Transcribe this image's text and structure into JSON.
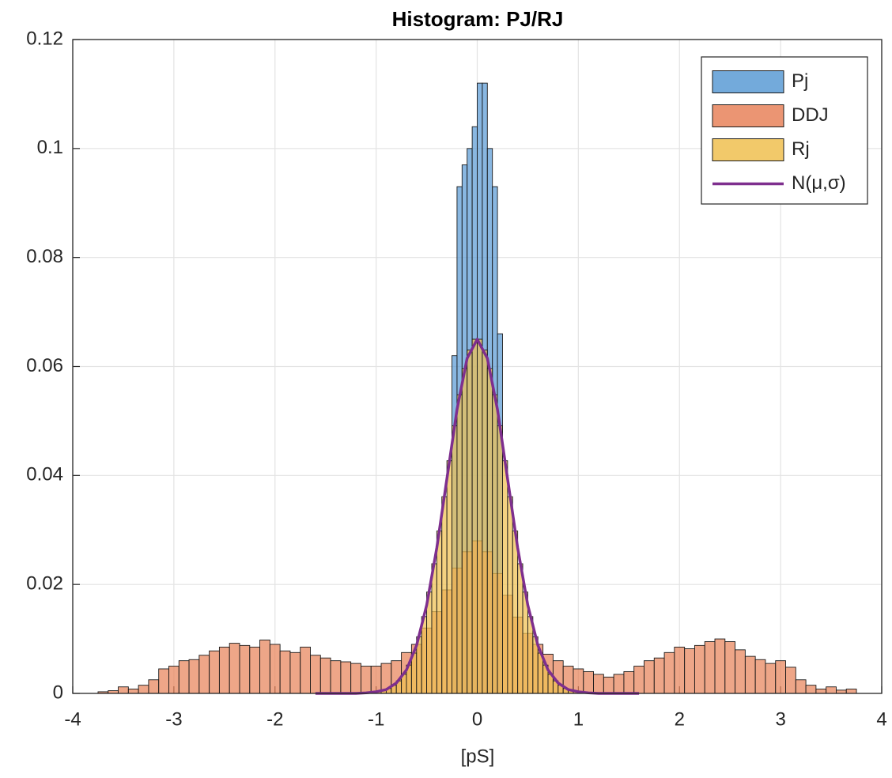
{
  "chart_data": {
    "type": "histogram",
    "title": "Histogram: PJ/RJ",
    "xlabel": "[pS]",
    "xlim": [
      -4,
      4
    ],
    "ylim": [
      0,
      0.12
    ],
    "xticks": [
      -4,
      -3,
      -2,
      -1,
      0,
      1,
      2,
      3,
      4
    ],
    "yticks": [
      0,
      0.02,
      0.04,
      0.06,
      0.08,
      0.1,
      0.12
    ],
    "grid": true,
    "legend": "northeast",
    "series": [
      {
        "name": "Pj",
        "color": "#5b9bd5",
        "bins": [
          -0.25,
          -0.2,
          -0.15,
          -0.1,
          -0.05,
          0,
          0.05,
          0.1,
          0.15,
          0.2,
          0.25
        ],
        "values": [
          0.062,
          0.093,
          0.097,
          0.1,
          0.104,
          0.112,
          0.112,
          0.1,
          0.093,
          0.066
        ]
      },
      {
        "name": "DDJ",
        "color": "#e8835a",
        "bins": [
          -3.75,
          -3.65,
          -3.55,
          -3.45,
          -3.35,
          -3.25,
          -3.15,
          -3.05,
          -2.95,
          -2.85,
          -2.75,
          -2.65,
          -2.55,
          -2.45,
          -2.35,
          -2.25,
          -2.15,
          -2.05,
          -1.95,
          -1.85,
          -1.75,
          -1.65,
          -1.55,
          -1.45,
          -1.35,
          -1.25,
          -1.15,
          -1.05,
          -0.95,
          -0.85,
          -0.75,
          -0.65,
          -0.55,
          -0.45,
          -0.35,
          -0.25,
          -0.15,
          -0.05,
          0.05,
          0.15,
          0.25,
          0.35,
          0.45,
          0.55,
          0.65,
          0.75,
          0.85,
          0.95,
          1.05,
          1.15,
          1.25,
          1.35,
          1.45,
          1.55,
          1.65,
          1.75,
          1.85,
          1.95,
          2.05,
          2.15,
          2.25,
          2.35,
          2.45,
          2.55,
          2.65,
          2.75,
          2.85,
          2.95,
          3.05,
          3.15,
          3.25,
          3.35,
          3.45,
          3.55,
          3.65,
          3.75
        ],
        "values": [
          0.0003,
          0.0005,
          0.0012,
          0.0008,
          0.0015,
          0.0025,
          0.0045,
          0.005,
          0.006,
          0.0062,
          0.007,
          0.0078,
          0.0085,
          0.0092,
          0.0088,
          0.0085,
          0.0098,
          0.009,
          0.0078,
          0.0075,
          0.0085,
          0.007,
          0.0065,
          0.006,
          0.0058,
          0.0055,
          0.005,
          0.005,
          0.0055,
          0.006,
          0.0075,
          0.009,
          0.012,
          0.015,
          0.019,
          0.023,
          0.026,
          0.028,
          0.026,
          0.022,
          0.018,
          0.014,
          0.011,
          0.009,
          0.0072,
          0.006,
          0.005,
          0.0045,
          0.004,
          0.0035,
          0.003,
          0.0035,
          0.004,
          0.005,
          0.006,
          0.0065,
          0.0075,
          0.0085,
          0.0082,
          0.0088,
          0.0095,
          0.01,
          0.0095,
          0.008,
          0.0068,
          0.0062,
          0.0055,
          0.006,
          0.0048,
          0.0025,
          0.0015,
          0.0008,
          0.0012,
          0.0006,
          0.0008
        ]
      },
      {
        "name": "Rj",
        "color": "#f0c050",
        "bins": [
          -1,
          -0.95,
          -0.9,
          -0.85,
          -0.8,
          -0.75,
          -0.7,
          -0.65,
          -0.6,
          -0.55,
          -0.5,
          -0.45,
          -0.4,
          -0.35,
          -0.3,
          -0.25,
          -0.2,
          -0.15,
          -0.1,
          -0.05,
          0,
          0.05,
          0.1,
          0.15,
          0.2,
          0.25,
          0.3,
          0.35,
          0.4,
          0.45,
          0.5,
          0.55,
          0.6,
          0.65,
          0.7,
          0.75,
          0.8,
          0.85,
          0.9,
          0.95,
          1
        ],
        "values": [
          0.0003,
          0.0006,
          0.0009,
          0.0015,
          0.0023,
          0.0035,
          0.0052,
          0.0074,
          0.0104,
          0.0141,
          0.0186,
          0.0238,
          0.0298,
          0.0361,
          0.0427,
          0.0491,
          0.0548,
          0.0596,
          0.063,
          0.065,
          0.065,
          0.063,
          0.0596,
          0.0548,
          0.0491,
          0.0427,
          0.0361,
          0.0298,
          0.0238,
          0.0186,
          0.0141,
          0.0104,
          0.0074,
          0.0052,
          0.0035,
          0.0023,
          0.0015,
          0.0009,
          0.0006,
          0.0003
        ]
      },
      {
        "name": "N(μ,σ)",
        "color": "#7e2f8e",
        "type": "line",
        "x": [
          -1.6,
          -1.5,
          -1.4,
          -1.3,
          -1.2,
          -1.1,
          -1,
          -0.9,
          -0.8,
          -0.7,
          -0.6,
          -0.5,
          -0.4,
          -0.3,
          -0.2,
          -0.1,
          0,
          0.1,
          0.2,
          0.3,
          0.4,
          0.5,
          0.6,
          0.7,
          0.8,
          0.9,
          1,
          1.1,
          1.2,
          1.3,
          1.4,
          1.5,
          1.6
        ],
        "values": [
          0,
          0,
          0,
          0,
          0,
          0.0001,
          0.0003,
          0.0007,
          0.0019,
          0.0043,
          0.0088,
          0.0162,
          0.0267,
          0.0394,
          0.0521,
          0.0615,
          0.065,
          0.0615,
          0.0521,
          0.0394,
          0.0267,
          0.0162,
          0.0088,
          0.0043,
          0.0019,
          0.0007,
          0.0003,
          0.0001,
          0,
          0,
          0,
          0,
          0
        ]
      }
    ]
  }
}
